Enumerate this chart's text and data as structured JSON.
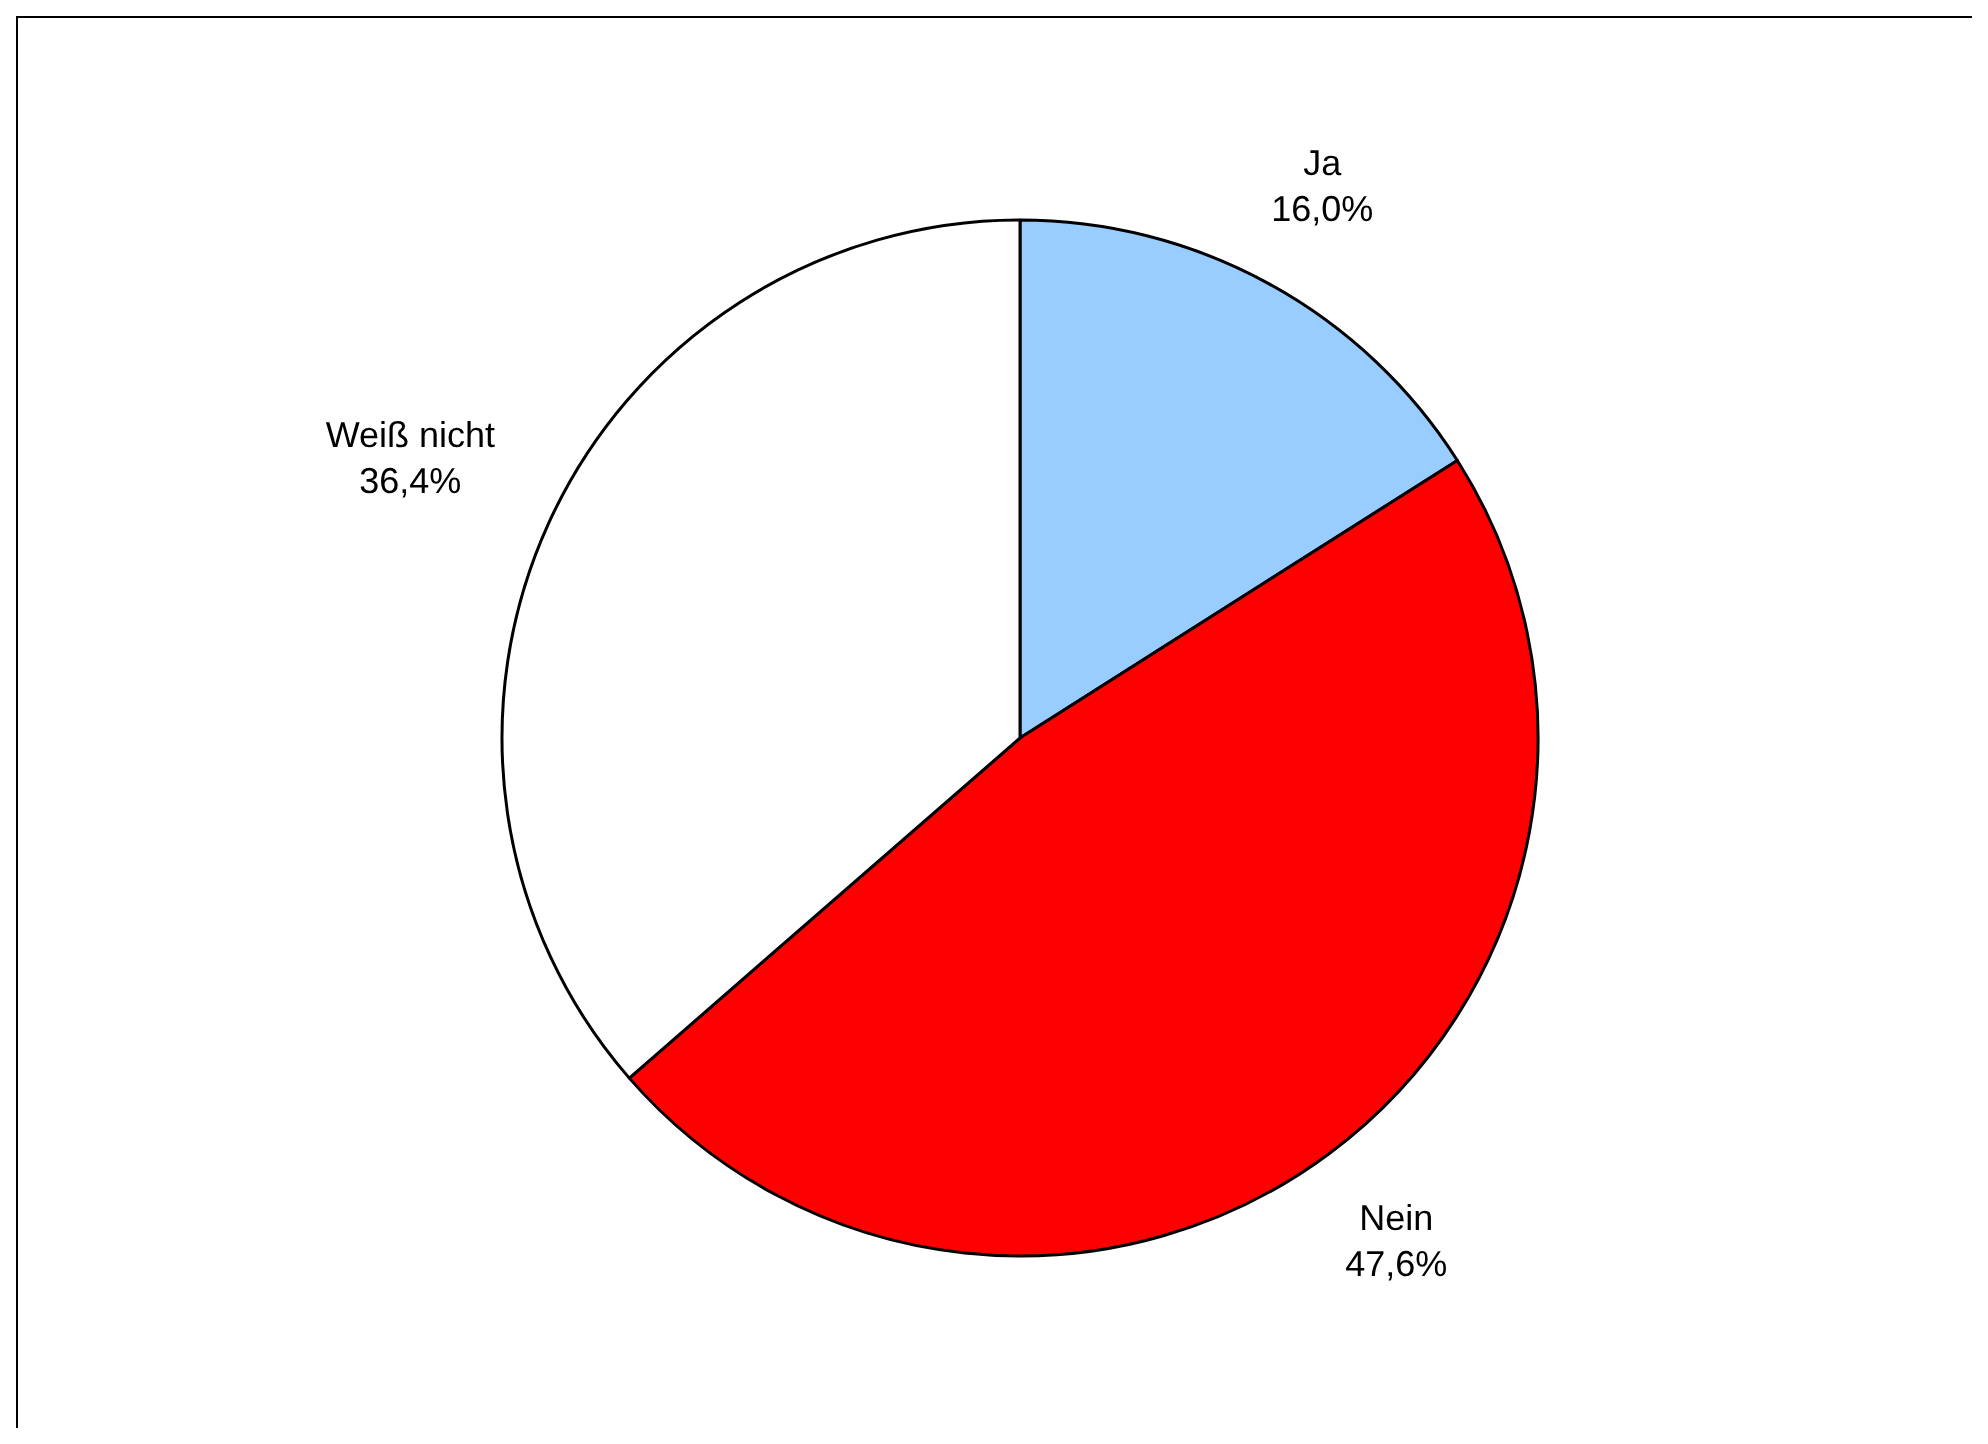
{
  "chart_data": {
    "type": "pie",
    "categories": [
      "Ja",
      "Nein",
      "Weiß nicht"
    ],
    "values": [
      16.0,
      47.6,
      36.4
    ],
    "colors": [
      "#99ccff",
      "#ff0000",
      "#ffffff"
    ],
    "value_labels": [
      "16,0%",
      "47,6%",
      "36,4%"
    ]
  }
}
